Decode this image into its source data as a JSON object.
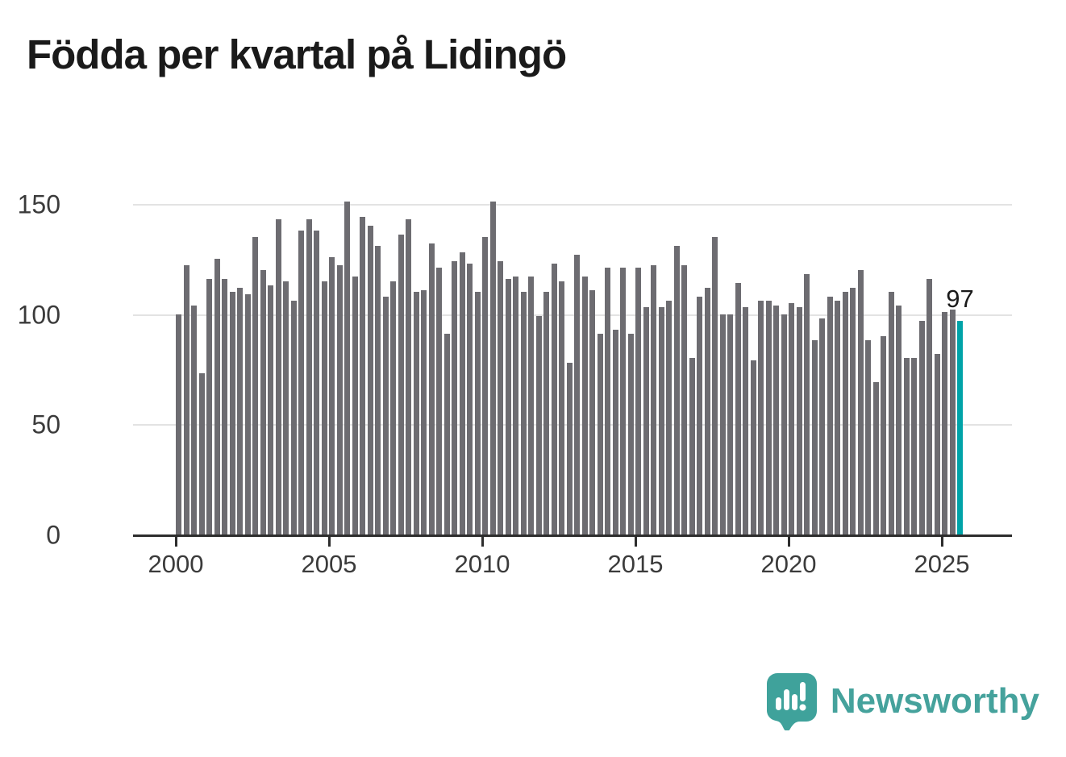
{
  "title": "Födda per kvartal på Lidingö",
  "annotation": {
    "last_value_label": "97"
  },
  "branding": {
    "name": "Newsworthy",
    "icon": "newsworthy-pin-logo",
    "color": "#45a29c"
  },
  "colors": {
    "bar": "#6d6c71",
    "highlight": "#00a3a8",
    "grid": "#e3e3e3",
    "axis": "#2d2d2d",
    "tick_text": "#3b3b3b",
    "title_text": "#1a1a1a"
  },
  "chart_data": {
    "type": "bar",
    "title": "Födda per kvartal på Lidingö",
    "xlabel": "",
    "ylabel": "",
    "frequency": "quarterly",
    "x_start": "2000-Q1",
    "x_end": "2025-Q3",
    "x_tick_labels": [
      "2000",
      "2005",
      "2010",
      "2015",
      "2020",
      "2025"
    ],
    "y_ticks": [
      0,
      50,
      100,
      150
    ],
    "ylim": [
      0,
      157
    ],
    "grid": true,
    "legend": false,
    "highlight_last_bar": true,
    "last_bar_label": "97",
    "series": [
      {
        "name": "Födda per kvartal",
        "values": [
          100,
          122,
          104,
          73,
          116,
          125,
          116,
          110,
          112,
          109,
          135,
          120,
          113,
          143,
          115,
          106,
          138,
          143,
          138,
          115,
          126,
          122,
          151,
          117,
          144,
          140,
          131,
          108,
          115,
          136,
          143,
          110,
          111,
          132,
          121,
          91,
          124,
          128,
          123,
          110,
          135,
          151,
          124,
          116,
          117,
          110,
          117,
          99,
          110,
          123,
          115,
          78,
          127,
          117,
          111,
          91,
          121,
          93,
          121,
          91,
          121,
          103,
          122,
          103,
          106,
          131,
          122,
          80,
          108,
          112,
          135,
          100,
          100,
          114,
          103,
          79,
          106,
          106,
          104,
          100,
          105,
          103,
          118,
          88,
          98,
          108,
          106,
          110,
          112,
          120,
          88,
          69,
          90,
          110,
          104,
          80,
          80,
          97,
          116,
          82,
          101,
          102,
          97
        ]
      }
    ]
  }
}
